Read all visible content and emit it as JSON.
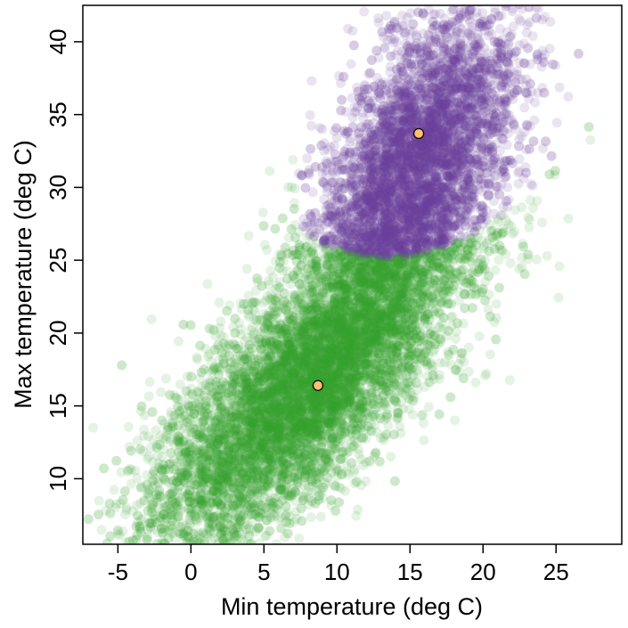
{
  "chart_data": {
    "type": "scatter",
    "xlabel": "Min temperature (deg C)",
    "ylabel": "Max temperature (deg C)",
    "xlim": [
      -7.4,
      29.5
    ],
    "ylim": [
      5.5,
      42.5
    ],
    "xticks": [
      -5,
      0,
      5,
      10,
      15,
      20,
      25
    ],
    "yticks": [
      10,
      15,
      20,
      25,
      30,
      35,
      40
    ],
    "grid": false,
    "legend": "none",
    "clusters": [
      {
        "color": "#33a02c",
        "point_count": 9000,
        "centroid": [
          8.7,
          16.4
        ],
        "description_x_range": [
          -7,
          23
        ],
        "description_y_range": [
          5.5,
          33
        ]
      },
      {
        "color": "#6a3d9a",
        "point_count": 6000,
        "centroid": [
          15.6,
          33.7
        ],
        "description_x_range": [
          7,
          29
        ],
        "description_y_range": [
          25,
          43
        ]
      }
    ],
    "centroids": [
      {
        "x": 8.7,
        "y": 16.4,
        "color": "#fdbf6f"
      },
      {
        "x": 15.6,
        "y": 33.7,
        "color": "#fdbf6f"
      }
    ]
  }
}
